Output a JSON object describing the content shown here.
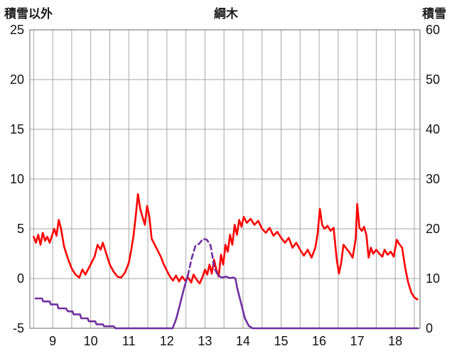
{
  "header": {
    "left_axis_title": "積雪以外",
    "title": "綱木",
    "right_axis_title": "積雪"
  },
  "chart_data": {
    "type": "line",
    "title": "綱木",
    "left_axis_label": "積雪以外",
    "right_axis_label": "積雪",
    "x_range": [
      8.4,
      18.65
    ],
    "left_ylim": [
      -5,
      25
    ],
    "right_ylim": [
      0,
      60
    ],
    "left_ticks": [
      25,
      20,
      15,
      10,
      5,
      0,
      -5
    ],
    "right_ticks": [
      60,
      50,
      40,
      30,
      20,
      10,
      0
    ],
    "x_ticks": [
      9,
      10,
      11,
      12,
      13,
      14,
      15,
      16,
      17,
      18
    ],
    "grid": {
      "x_start": 8.5,
      "x_end": 18.5,
      "x_step": 0.5,
      "y_step": 5
    },
    "grid_color": "#a6a6a6",
    "border_color": "#808080",
    "legend": "none",
    "series": [
      {
        "name": "積雪以外",
        "axis": "left",
        "color": "#ff0000",
        "width": 2.6,
        "segments": [
          {
            "style": "solid",
            "points": [
              [
                8.5,
                4.2
              ],
              [
                8.56,
                3.6
              ],
              [
                8.62,
                4.4
              ],
              [
                8.68,
                3.4
              ],
              [
                8.74,
                4.6
              ],
              [
                8.8,
                3.8
              ],
              [
                8.86,
                4.2
              ],
              [
                8.92,
                3.6
              ],
              [
                8.98,
                4.3
              ],
              [
                9.04,
                5.0
              ],
              [
                9.1,
                4.3
              ],
              [
                9.16,
                5.9
              ],
              [
                9.22,
                5.0
              ],
              [
                9.3,
                3.2
              ],
              [
                9.4,
                2.0
              ],
              [
                9.5,
                1.0
              ],
              [
                9.6,
                0.4
              ],
              [
                9.7,
                0.1
              ],
              [
                9.78,
                0.9
              ],
              [
                9.86,
                0.4
              ],
              [
                9.94,
                1.0
              ],
              [
                10.02,
                1.6
              ],
              [
                10.1,
                2.2
              ],
              [
                10.18,
                3.4
              ],
              [
                10.26,
                2.9
              ],
              [
                10.32,
                3.6
              ],
              [
                10.4,
                2.6
              ],
              [
                10.5,
                1.4
              ],
              [
                10.6,
                0.7
              ],
              [
                10.7,
                0.2
              ],
              [
                10.8,
                0.1
              ],
              [
                10.9,
                0.6
              ],
              [
                11.0,
                1.6
              ],
              [
                11.06,
                2.8
              ],
              [
                11.12,
                4.2
              ],
              [
                11.18,
                6.2
              ],
              [
                11.24,
                8.5
              ],
              [
                11.3,
                7.0
              ],
              [
                11.36,
                6.2
              ],
              [
                11.42,
                5.4
              ],
              [
                11.48,
                7.3
              ],
              [
                11.54,
                6.2
              ],
              [
                11.6,
                4.0
              ],
              [
                11.68,
                3.4
              ],
              [
                11.76,
                2.8
              ],
              [
                11.84,
                2.2
              ],
              [
                11.92,
                1.4
              ],
              [
                12.0,
                0.8
              ],
              [
                12.08,
                0.2
              ],
              [
                12.16,
                -0.2
              ],
              [
                12.24,
                0.3
              ],
              [
                12.32,
                -0.3
              ],
              [
                12.4,
                0.2
              ],
              [
                12.48,
                -0.2
              ],
              [
                12.56,
                0.1
              ],
              [
                12.64,
                -0.4
              ],
              [
                12.7,
                0.4
              ],
              [
                12.78,
                -0.1
              ],
              [
                12.86,
                -0.5
              ],
              [
                12.94,
                0.2
              ],
              [
                13.0,
                0.9
              ],
              [
                13.06,
                0.4
              ],
              [
                13.12,
                1.4
              ],
              [
                13.18,
                0.5
              ],
              [
                13.24,
                1.9
              ],
              [
                13.3,
                0.9
              ],
              [
                13.36,
                0.2
              ],
              [
                13.42,
                2.4
              ],
              [
                13.48,
                1.4
              ],
              [
                13.54,
                3.4
              ],
              [
                13.6,
                2.7
              ],
              [
                13.66,
                4.4
              ],
              [
                13.72,
                3.4
              ],
              [
                13.78,
                5.4
              ],
              [
                13.84,
                4.4
              ],
              [
                13.9,
                5.9
              ],
              [
                13.96,
                5.2
              ],
              [
                14.02,
                6.2
              ],
              [
                14.1,
                5.6
              ],
              [
                14.2,
                6.0
              ],
              [
                14.3,
                5.4
              ],
              [
                14.4,
                5.8
              ],
              [
                14.5,
                5.0
              ],
              [
                14.6,
                4.6
              ],
              [
                14.7,
                5.1
              ],
              [
                14.8,
                4.3
              ],
              [
                14.9,
                4.7
              ],
              [
                15.0,
                4.1
              ],
              [
                15.1,
                3.6
              ],
              [
                15.2,
                4.1
              ],
              [
                15.3,
                3.1
              ],
              [
                15.4,
                3.6
              ],
              [
                15.5,
                2.9
              ],
              [
                15.6,
                2.3
              ],
              [
                15.7,
                2.9
              ],
              [
                15.8,
                2.1
              ],
              [
                15.9,
                3.1
              ],
              [
                15.96,
                4.5
              ],
              [
                16.02,
                7.0
              ],
              [
                16.08,
                5.4
              ],
              [
                16.14,
                5.0
              ],
              [
                16.22,
                5.3
              ],
              [
                16.3,
                4.8
              ],
              [
                16.38,
                5.1
              ],
              [
                16.46,
                2.0
              ],
              [
                16.52,
                0.5
              ],
              [
                16.58,
                1.6
              ],
              [
                16.64,
                3.4
              ],
              [
                16.72,
                3.0
              ],
              [
                16.8,
                2.6
              ],
              [
                16.88,
                2.1
              ],
              [
                16.96,
                4.0
              ],
              [
                17.0,
                7.5
              ],
              [
                17.06,
                5.1
              ],
              [
                17.12,
                4.8
              ],
              [
                17.18,
                5.2
              ],
              [
                17.24,
                4.4
              ],
              [
                17.3,
                2.1
              ],
              [
                17.36,
                3.1
              ],
              [
                17.42,
                2.5
              ],
              [
                17.5,
                2.9
              ],
              [
                17.58,
                2.5
              ],
              [
                17.66,
                2.2
              ],
              [
                17.72,
                2.9
              ],
              [
                17.8,
                2.4
              ],
              [
                17.88,
                2.7
              ],
              [
                17.96,
                2.2
              ],
              [
                18.04,
                3.9
              ],
              [
                18.1,
                3.5
              ],
              [
                18.18,
                3.1
              ],
              [
                18.26,
                1.1
              ],
              [
                18.34,
                -0.4
              ],
              [
                18.42,
                -1.4
              ],
              [
                18.5,
                -1.9
              ],
              [
                18.58,
                -2.1
              ]
            ]
          }
        ]
      },
      {
        "name": "積雪",
        "axis": "right",
        "color": "#7030a0",
        "width": 2.6,
        "segments": [
          {
            "style": "solid",
            "points": [
              [
                8.55,
                6
              ],
              [
                8.72,
                6
              ],
              [
                8.75,
                5.4
              ],
              [
                8.92,
                5.4
              ],
              [
                8.95,
                4.8
              ],
              [
                9.12,
                4.8
              ],
              [
                9.15,
                4
              ],
              [
                9.35,
                4
              ],
              [
                9.4,
                3.4
              ],
              [
                9.52,
                3.4
              ],
              [
                9.55,
                2.8
              ],
              [
                9.72,
                2.8
              ],
              [
                9.75,
                2
              ],
              [
                9.92,
                2
              ],
              [
                9.95,
                1.4
              ],
              [
                10.12,
                1.4
              ],
              [
                10.15,
                0.8
              ],
              [
                10.32,
                0.8
              ],
              [
                10.35,
                0.4
              ],
              [
                10.6,
                0.4
              ],
              [
                10.65,
                0
              ],
              [
                12.15,
                0
              ],
              [
                12.25,
                2
              ],
              [
                12.35,
                5
              ],
              [
                12.45,
                8
              ],
              [
                12.55,
                10.6
              ]
            ]
          },
          {
            "style": "dashed",
            "points": [
              [
                12.55,
                10.6
              ],
              [
                12.65,
                14
              ],
              [
                12.75,
                16.6
              ],
              [
                12.85,
                17
              ],
              [
                12.95,
                18
              ],
              [
                13.05,
                17.8
              ],
              [
                13.15,
                16.6
              ],
              [
                13.25,
                12
              ],
              [
                13.35,
                10.6
              ]
            ]
          },
          {
            "style": "solid",
            "points": [
              [
                13.35,
                10.6
              ],
              [
                13.45,
                10.2
              ],
              [
                13.55,
                10.4
              ],
              [
                13.65,
                10.1
              ],
              [
                13.75,
                10.2
              ],
              [
                13.8,
                10
              ],
              [
                13.85,
                8
              ],
              [
                13.95,
                5
              ],
              [
                14.05,
                2
              ],
              [
                14.15,
                0.5
              ],
              [
                14.25,
                0
              ],
              [
                18.6,
                0
              ]
            ]
          }
        ]
      }
    ]
  }
}
